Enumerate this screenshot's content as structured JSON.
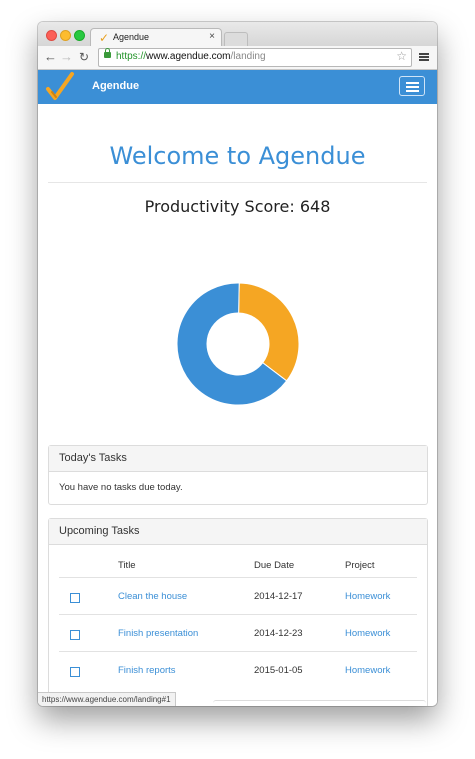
{
  "browser": {
    "tab_title": "Agendue",
    "tab_close": "×",
    "url_scheme": "https://",
    "url_host": "www.agendue.com",
    "url_path": "/landing",
    "star_icon": "☆",
    "status_url": "https://www.agendue.com/landing#1"
  },
  "navbar": {
    "brand": "Agendue",
    "color": "#3b8fd6"
  },
  "main": {
    "welcome": "Welcome to Agendue",
    "productivity_score": "Productivity Score: 648",
    "donut": {
      "segments": [
        {
          "color": "#f5a623",
          "fraction": 0.35
        },
        {
          "color": "#3b8fd6",
          "fraction": 0.65
        }
      ]
    }
  },
  "today_tasks": {
    "title": "Today's Tasks",
    "message": "You have no tasks due today."
  },
  "upcoming_tasks": {
    "title": "Upcoming Tasks",
    "columns": [
      "",
      "Title",
      "Due Date",
      "Project"
    ],
    "rows": [
      {
        "title": "Clean the house",
        "due": "2014-12-17",
        "project": "Homework"
      },
      {
        "title": "Finish presentation",
        "due": "2014-12-23",
        "project": "Homework"
      },
      {
        "title": "Finish reports",
        "due": "2015-01-05",
        "project": "Homework"
      }
    ]
  }
}
